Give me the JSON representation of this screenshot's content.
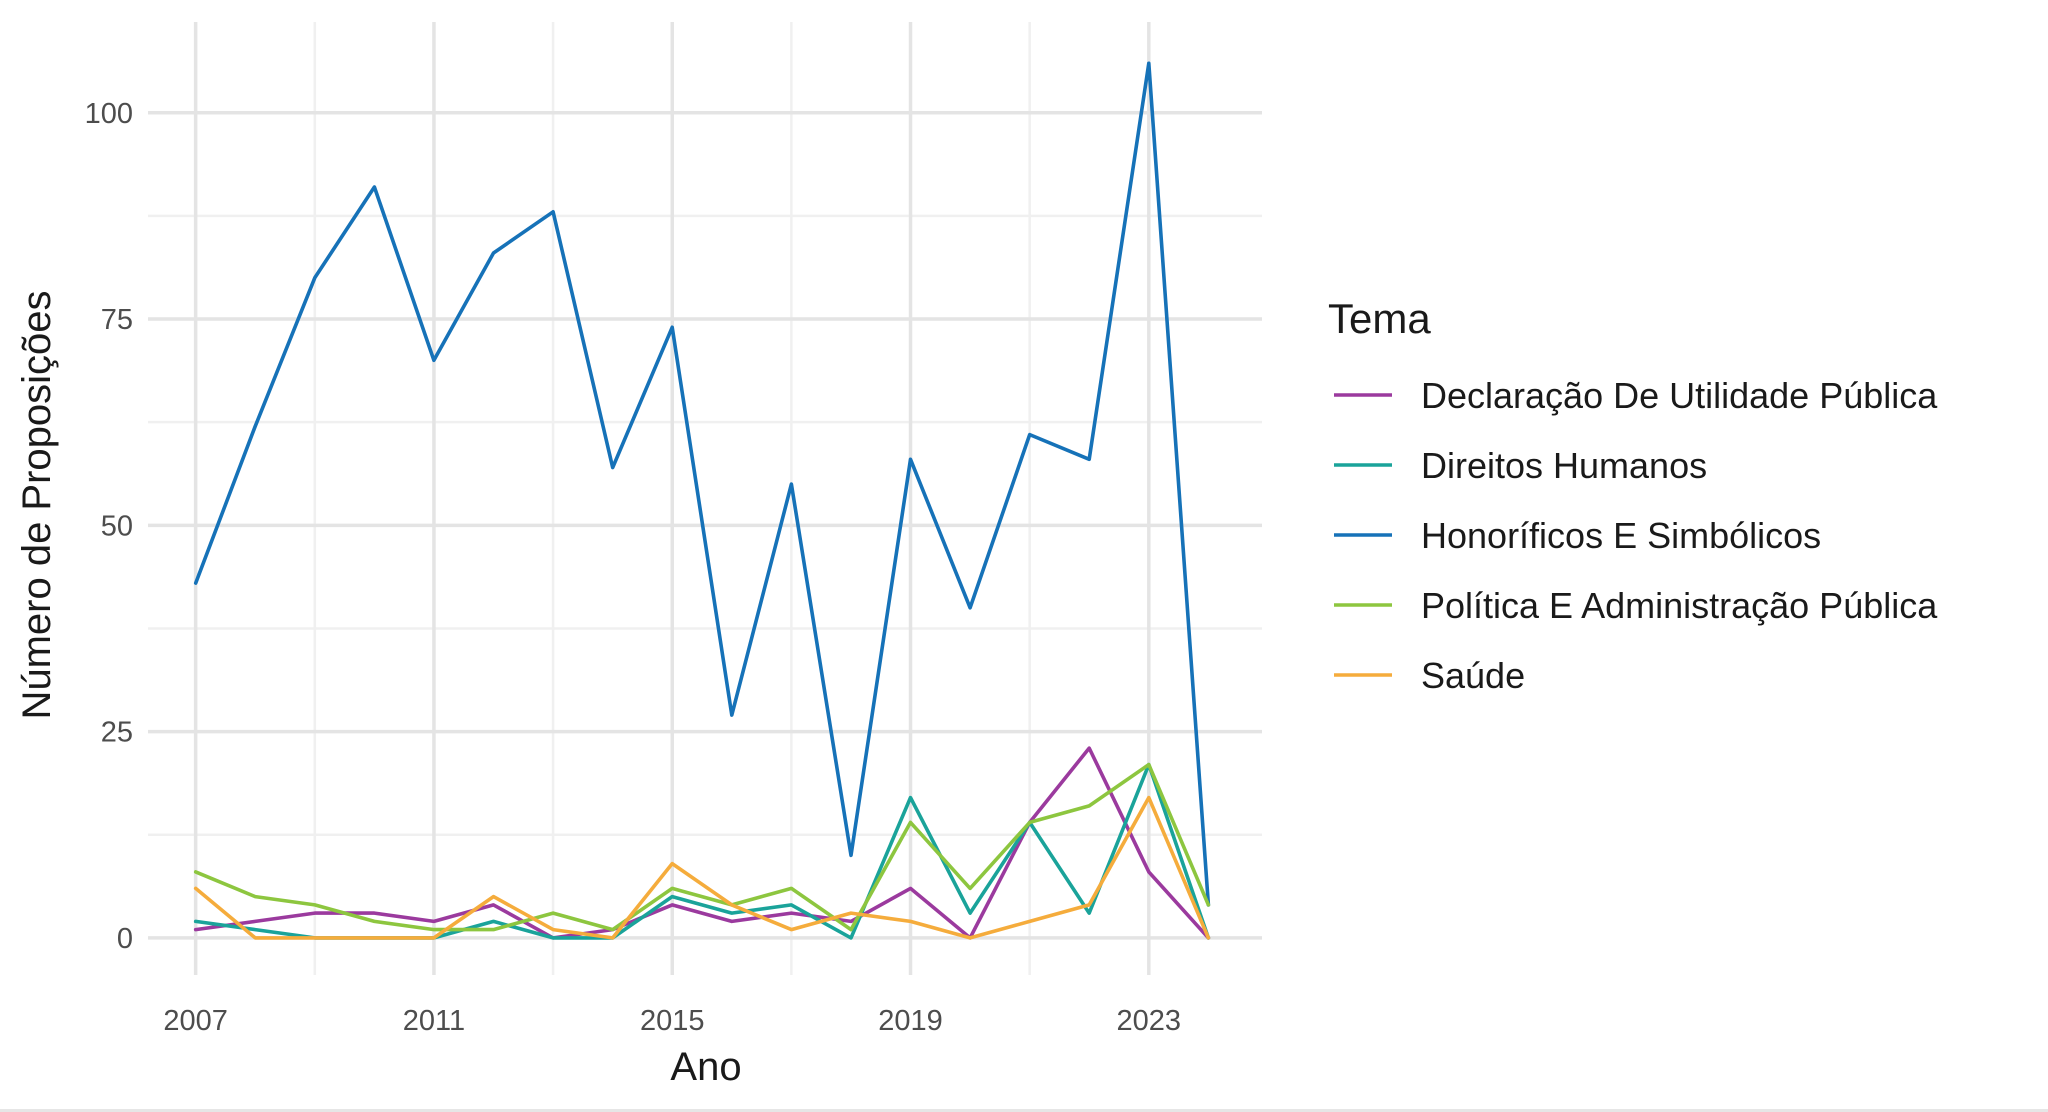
{
  "chart_data": {
    "type": "line",
    "title": "",
    "xlabel": "Ano",
    "ylabel": "Número de Proposições",
    "xlim": [
      2006.2,
      2024.9
    ],
    "ylim": [
      -4.5,
      111
    ],
    "x_ticks": [
      2007,
      2011,
      2015,
      2019,
      2023
    ],
    "y_ticks": [
      0,
      25,
      50,
      75,
      100
    ],
    "grid": true,
    "legend": {
      "title": "Tema",
      "position": "right"
    },
    "x": [
      2007,
      2008,
      2009,
      2010,
      2011,
      2012,
      2013,
      2014,
      2015,
      2016,
      2017,
      2018,
      2019,
      2020,
      2021,
      2022,
      2023,
      2024
    ],
    "series": [
      {
        "name": "Declaração De Utilidade Pública",
        "color": "#9b3a9e",
        "values": [
          1,
          2,
          3,
          3,
          2,
          4,
          0,
          1,
          4,
          2,
          3,
          2,
          6,
          0,
          14,
          23,
          8,
          0
        ]
      },
      {
        "name": "Direitos Humanos",
        "color": "#1aa39a",
        "values": [
          2,
          1,
          0,
          0,
          0,
          2,
          0,
          0,
          5,
          3,
          4,
          0,
          17,
          3,
          14,
          3,
          21,
          0
        ]
      },
      {
        "name": "Honoríficos E Simbólicos",
        "color": "#1672b8",
        "values": [
          43,
          62,
          80,
          91,
          70,
          83,
          88,
          57,
          74,
          27,
          55,
          10,
          58,
          40,
          61,
          58,
          106,
          4
        ]
      },
      {
        "name": "Política E Administração Pública",
        "color": "#8dc63f",
        "values": [
          8,
          5,
          4,
          2,
          1,
          1,
          3,
          1,
          6,
          4,
          6,
          1,
          14,
          6,
          14,
          16,
          21,
          4
        ]
      },
      {
        "name": "Saúde",
        "color": "#f5ac3c",
        "values": [
          6,
          0,
          0,
          0,
          0,
          5,
          1,
          0,
          9,
          4,
          1,
          3,
          2,
          0,
          2,
          4,
          17,
          0
        ]
      }
    ]
  }
}
